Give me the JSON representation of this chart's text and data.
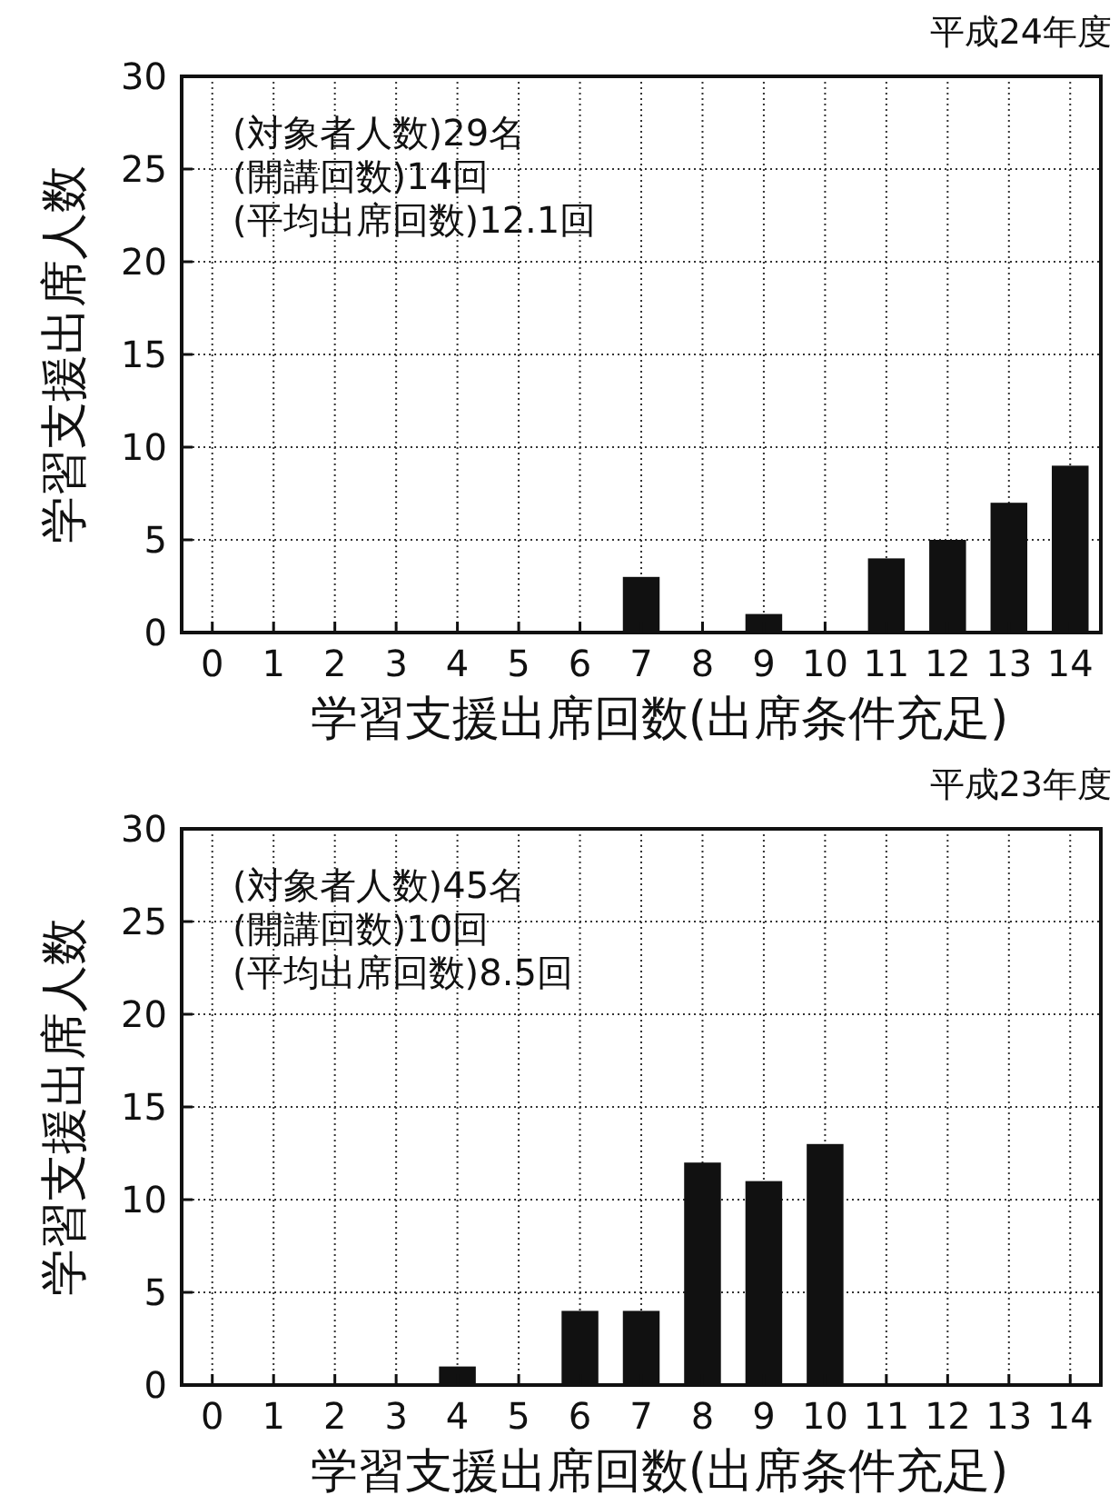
{
  "chart_data": [
    {
      "type": "bar",
      "title": "平成24年度",
      "xlabel": "学習支援出席回数(出席条件充足)",
      "ylabel": "学習支援出席人数",
      "categories": [
        "0",
        "1",
        "2",
        "3",
        "4",
        "5",
        "6",
        "7",
        "8",
        "9",
        "10",
        "11",
        "12",
        "13",
        "14"
      ],
      "values": [
        0,
        0,
        0,
        0,
        0,
        0,
        0,
        3,
        0,
        1,
        0,
        4,
        5,
        7,
        9
      ],
      "color": "#111111",
      "ylim": [
        0,
        30
      ],
      "yticks": [
        0,
        5,
        10,
        15,
        20,
        25,
        30
      ],
      "grid": true,
      "annotations": [
        "(対象者人数)29名",
        "(開講回数)14回",
        "(平均出席回数)12.1回"
      ]
    },
    {
      "type": "bar",
      "title": "平成23年度",
      "xlabel": "学習支援出席回数(出席条件充足)",
      "ylabel": "学習支援出席人数",
      "categories": [
        "0",
        "1",
        "2",
        "3",
        "4",
        "5",
        "6",
        "7",
        "8",
        "9",
        "10",
        "11",
        "12",
        "13",
        "14"
      ],
      "values": [
        0,
        0,
        0,
        0,
        1,
        0,
        4,
        4,
        12,
        11,
        13,
        0,
        0,
        0,
        0
      ],
      "color": "#111111",
      "ylim": [
        0,
        30
      ],
      "yticks": [
        0,
        5,
        10,
        15,
        20,
        25,
        30
      ],
      "grid": true,
      "annotations": [
        "(対象者人数)45名",
        "(開講回数)10回",
        "(平均出席回数)8.5回"
      ]
    }
  ]
}
